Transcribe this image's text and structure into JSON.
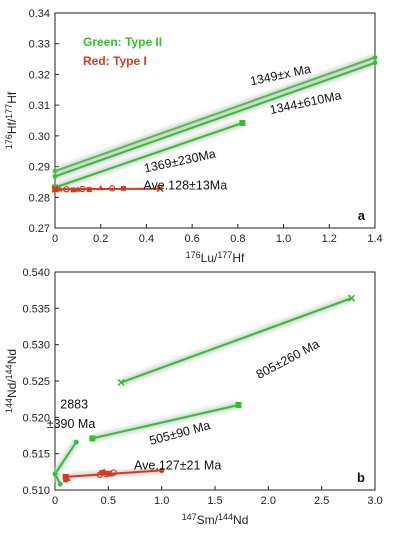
{
  "colors": {
    "green": "#2ec22e",
    "red": "#d43a22",
    "glow": "#c9c9c9"
  },
  "chart_data": [
    {
      "type": "scatter",
      "panel": "a",
      "xlabel_parts": [
        "176",
        "Lu/",
        "177",
        "Hf"
      ],
      "ylabel_parts": [
        "176",
        "Hf/",
        "177",
        "Hf"
      ],
      "xlim": [
        0,
        1.4
      ],
      "ylim": [
        0.27,
        0.34
      ],
      "xticks": [
        "0",
        "0.2",
        "0.4",
        "0.6",
        "0.8",
        "1.0",
        "1.2",
        "1.4"
      ],
      "yticks": [
        "0.27",
        "0.28",
        "0.29",
        "0.30",
        "0.31",
        "0.32",
        "0.33",
        "0.34"
      ],
      "legend": [
        {
          "text": "Green: Type II",
          "color": "green"
        },
        {
          "text": "Red: Type I",
          "color": "red"
        }
      ],
      "series": [
        {
          "color": "green",
          "style": "line",
          "points": [
            [
              0.0,
              0.2885
            ],
            [
              1.4,
              0.3255
            ]
          ]
        },
        {
          "color": "green",
          "style": "line",
          "points": [
            [
              0.0,
              0.2868
            ],
            [
              1.4,
              0.3238
            ]
          ]
        },
        {
          "color": "green",
          "style": "line-square",
          "points": [
            [
              0.0,
              0.2832
            ],
            [
              0.82,
              0.3042
            ]
          ]
        },
        {
          "color": "red",
          "style": "line-x",
          "points": [
            [
              0.0,
              0.2826
            ],
            [
              0.46,
              0.2828
            ]
          ]
        },
        {
          "color": "red",
          "style": "markers",
          "points": [
            [
              0.0,
              0.2825
            ],
            [
              0.02,
              0.2827
            ],
            [
              0.05,
              0.2826
            ],
            [
              0.08,
              0.2824
            ],
            [
              0.1,
              0.2826
            ],
            [
              0.12,
              0.2827
            ],
            [
              0.15,
              0.2825
            ],
            [
              0.2,
              0.2831
            ],
            [
              0.25,
              0.2829
            ],
            [
              0.3,
              0.2829
            ]
          ]
        }
      ],
      "annotations": [
        {
          "text": "1349±x Ma",
          "x": 0.99,
          "y": 0.3185,
          "rotate": -12
        },
        {
          "text": "1344±610Ma",
          "x": 1.1,
          "y": 0.3095,
          "rotate": -12
        },
        {
          "text": "1369±230Ma",
          "x": 0.55,
          "y": 0.2905,
          "rotate": -12
        },
        {
          "text": "Ave.128±13Ma",
          "x": 0.57,
          "y": 0.2825,
          "rotate": 0
        }
      ],
      "panel_letter": "a"
    },
    {
      "type": "scatter",
      "panel": "b",
      "xlabel_parts": [
        "147",
        "Sm/",
        "144",
        "Nd"
      ],
      "ylabel_parts": [
        "144",
        "Nd/",
        "144",
        "Nd"
      ],
      "xlim": [
        0,
        3.0
      ],
      "ylim": [
        0.51,
        0.54
      ],
      "xticks": [
        "0",
        "0.5",
        "1.0",
        "1.5",
        "2.0",
        "2.5",
        "3.0"
      ],
      "yticks": [
        "0.510",
        "0.515",
        "0.520",
        "0.525",
        "0.530",
        "0.535",
        "0.540"
      ],
      "series": [
        {
          "color": "green",
          "style": "line-x",
          "points": [
            [
              0.62,
              0.5248
            ],
            [
              2.78,
              0.5364
            ]
          ]
        },
        {
          "color": "green",
          "style": "line-square",
          "points": [
            [
              0.35,
              0.5171
            ],
            [
              1.72,
              0.5217
            ]
          ]
        },
        {
          "color": "green",
          "style": "line",
          "points": [
            [
              0.0,
              0.5122
            ],
            [
              0.2,
              0.5166
            ]
          ]
        },
        {
          "color": "green",
          "style": "line",
          "points": [
            [
              0.0,
              0.5122
            ],
            [
              0.05,
              0.5108
            ]
          ]
        },
        {
          "color": "red",
          "style": "line-o",
          "points": [
            [
              0.1,
              0.5118
            ],
            [
              1.0,
              0.5127
            ]
          ]
        },
        {
          "color": "red",
          "style": "markers",
          "points": [
            [
              0.1,
              0.5114
            ],
            [
              0.12,
              0.5116
            ],
            [
              0.42,
              0.5121
            ],
            [
              0.44,
              0.5124
            ],
            [
              0.46,
              0.5126
            ],
            [
              0.48,
              0.5122
            ],
            [
              0.5,
              0.5123
            ],
            [
              0.52,
              0.5122
            ],
            [
              0.55,
              0.5124
            ]
          ]
        }
      ],
      "annotations": [
        {
          "text": "805±260 Ma",
          "x": 2.2,
          "y": 0.5275,
          "rotate": -28
        },
        {
          "text": "505±90 Ma",
          "x": 1.18,
          "y": 0.5173,
          "rotate": -15
        },
        {
          "text": "2883",
          "x": 0.18,
          "y": 0.5212,
          "rotate": 0
        },
        {
          "text": "±390 Ma",
          "x": 0.15,
          "y": 0.5185,
          "rotate": 0
        },
        {
          "text": "Ave.127±21 Ma",
          "x": 1.15,
          "y": 0.5128,
          "rotate": 0
        }
      ],
      "panel_letter": "b"
    }
  ]
}
